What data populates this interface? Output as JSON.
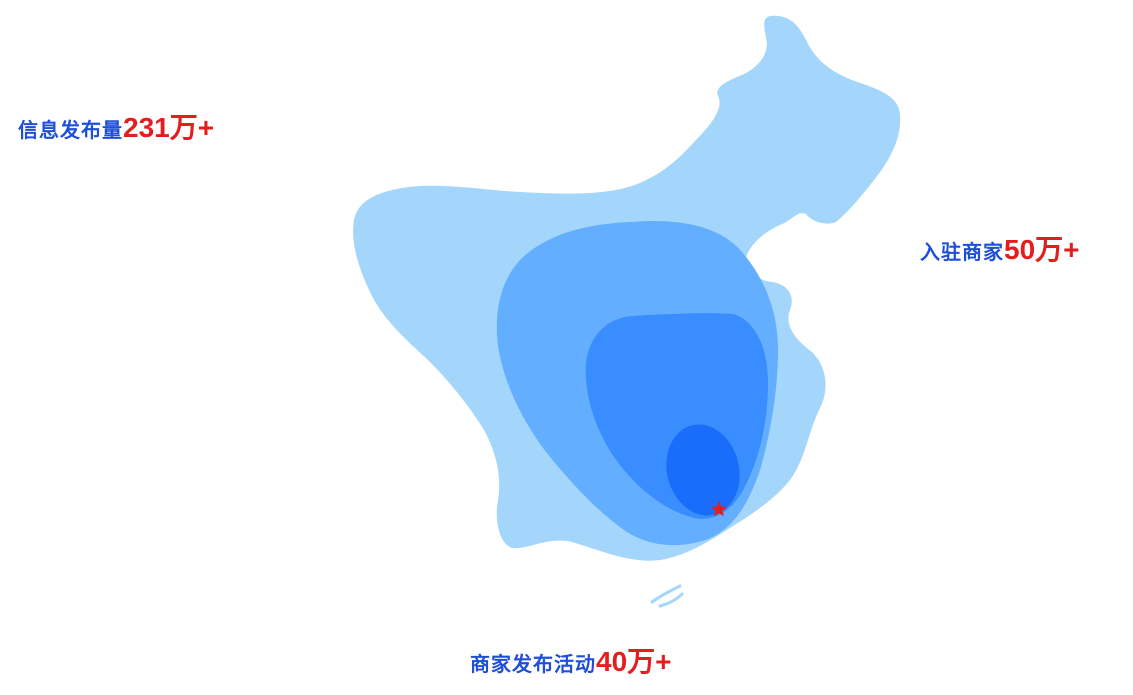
{
  "stats": {
    "info_published": {
      "label": "信息发布量",
      "value": "231万+"
    },
    "merchants_joined": {
      "label": "入驻商家",
      "value": "50万+"
    },
    "merchant_activities": {
      "label": "商家发布活动",
      "value": "40万+"
    }
  },
  "map": {
    "icon": "map-of-china-heat-zones",
    "marker_icon": "star-icon",
    "colors": {
      "outer": "#a4d6fb",
      "middle": "#64aeff",
      "inner": "#3a8dfe",
      "core": "#1a6dfb",
      "marker": "#e41e1e"
    }
  }
}
